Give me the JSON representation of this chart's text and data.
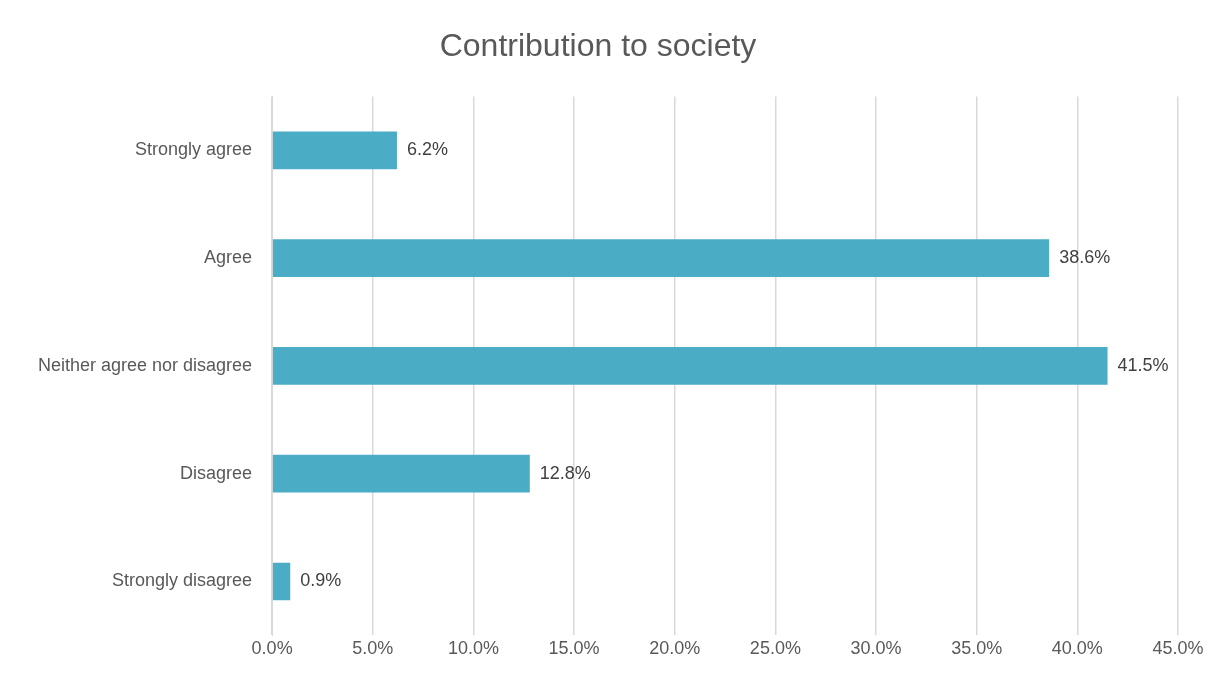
{
  "chart_data": {
    "type": "bar",
    "orientation": "horizontal",
    "title": "Contribution to society",
    "categories": [
      "Strongly agree",
      "Agree",
      "Neither agree nor disagree",
      "Disagree",
      "Strongly disagree"
    ],
    "values": [
      6.2,
      38.6,
      41.5,
      12.8,
      0.9
    ],
    "value_labels": [
      "6.2%",
      "38.6%",
      "41.5%",
      "12.8%",
      "0.9%"
    ],
    "color": "#4bacc6",
    "xlim": [
      0,
      45
    ],
    "xticks": [
      {
        "value": 0,
        "label": "0.0%"
      },
      {
        "value": 5,
        "label": "5.0%"
      },
      {
        "value": 10,
        "label": "10.0%"
      },
      {
        "value": 15,
        "label": "15.0%"
      },
      {
        "value": 20,
        "label": "20.0%"
      },
      {
        "value": 25,
        "label": "25.0%"
      },
      {
        "value": 30,
        "label": "30.0%"
      },
      {
        "value": 35,
        "label": "35.0%"
      },
      {
        "value": 40,
        "label": "40.0%"
      },
      {
        "value": 45,
        "label": "45.0%"
      }
    ],
    "grid": "x"
  }
}
